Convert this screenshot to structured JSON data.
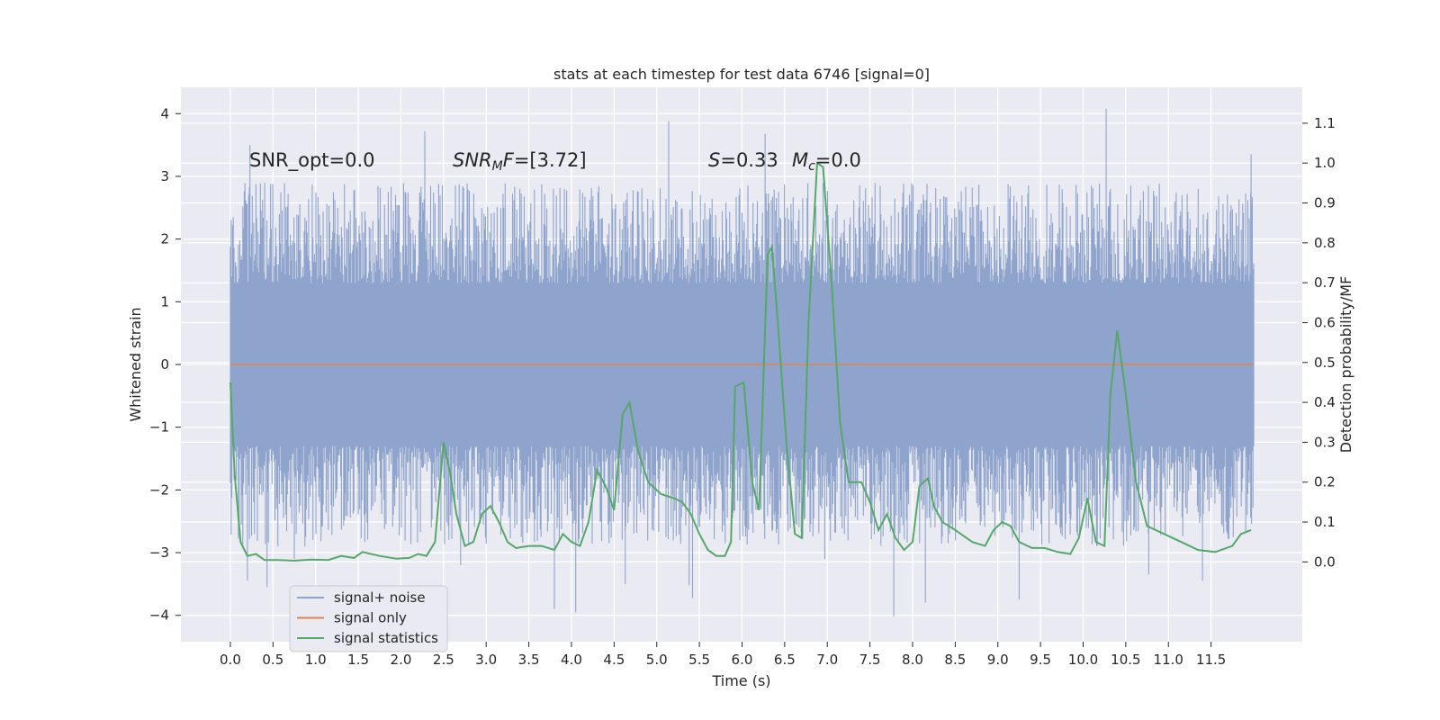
{
  "chart_data": {
    "type": "line",
    "title": "stats at each timestep for test data 6746 [signal=0]",
    "xlabel": "Time (s)",
    "ylabel_left": "Whitened strain",
    "ylabel_right": "Detection probability/MF",
    "xlim": [
      -0.58,
      12.57
    ],
    "ylim_left": [
      -4.42,
      4.42
    ],
    "ylim_right": [
      -0.2,
      1.19
    ],
    "x_ticks": [
      0.0,
      0.5,
      1.0,
      1.5,
      2.0,
      2.5,
      3.0,
      3.5,
      4.0,
      4.5,
      5.0,
      5.5,
      6.0,
      6.5,
      7.0,
      7.5,
      8.0,
      8.5,
      9.0,
      9.5,
      10.0,
      10.5,
      11.0,
      11.5
    ],
    "x_tick_labels": [
      "0.0",
      "0.5",
      "1.0",
      "1.5",
      "2.0",
      "2.5",
      "3.0",
      "3.5",
      "4.0",
      "4.5",
      "5.0",
      "5.5",
      "6.0",
      "6.5",
      "7.0",
      "7.5",
      "8.0",
      "8.5",
      "9.0",
      "9.5",
      "10.0",
      "10.5",
      "11.0",
      "11.5"
    ],
    "y_left_ticks": [
      -4,
      -3,
      -2,
      -1,
      0,
      1,
      2,
      3,
      4
    ],
    "y_left_tick_labels": [
      "−4",
      "−3",
      "−2",
      "−1",
      "0",
      "1",
      "2",
      "3",
      "4"
    ],
    "y_right_ticks": [
      0.0,
      0.1,
      0.2,
      0.3,
      0.4,
      0.5,
      0.6,
      0.7,
      0.8,
      0.9,
      1.0,
      1.1
    ],
    "y_right_tick_labels": [
      "0.0",
      "0.1",
      "0.2",
      "0.3",
      "0.4",
      "0.5",
      "0.6",
      "0.7",
      "0.8",
      "0.9",
      "1.0",
      "1.1"
    ],
    "grid": true,
    "legend_position": "lower-left",
    "series": [
      {
        "name": "signal+ noise",
        "axis": "left",
        "color": "#8fa4cc",
        "x_range": [
          0.0,
          12.0
        ],
        "typical_range": [
          -1.3,
          1.3
        ],
        "extremes": [
          {
            "x": 0.23,
            "y": 3.5
          },
          {
            "x": 0.2,
            "y": -3.45
          },
          {
            "x": 0.43,
            "y": -3.55
          },
          {
            "x": 0.75,
            "y": -3.1
          },
          {
            "x": 2.28,
            "y": 3.72
          },
          {
            "x": 2.7,
            "y": -3.2
          },
          {
            "x": 3.8,
            "y": -3.9
          },
          {
            "x": 4.05,
            "y": -3.95
          },
          {
            "x": 4.63,
            "y": -3.5
          },
          {
            "x": 5.14,
            "y": 3.88
          },
          {
            "x": 5.38,
            "y": -3.52
          },
          {
            "x": 5.42,
            "y": -3.72
          },
          {
            "x": 6.27,
            "y": 3.68
          },
          {
            "x": 6.97,
            "y": -3.1
          },
          {
            "x": 7.78,
            "y": -4.02
          },
          {
            "x": 8.15,
            "y": -3.8
          },
          {
            "x": 9.25,
            "y": -3.75
          },
          {
            "x": 10.27,
            "y": 4.08
          },
          {
            "x": 10.77,
            "y": -3.35
          },
          {
            "x": 11.4,
            "y": -3.45
          },
          {
            "x": 11.97,
            "y": 3.35
          }
        ]
      },
      {
        "name": "signal only",
        "axis": "left",
        "color": "#dd8452",
        "x": [
          0.0,
          12.0
        ],
        "y": [
          0.0,
          0.0
        ]
      },
      {
        "name": "signal statistics",
        "axis": "right",
        "color": "#55a868",
        "x": [
          0.0,
          0.05,
          0.12,
          0.2,
          0.3,
          0.4,
          0.55,
          0.75,
          0.95,
          1.15,
          1.3,
          1.45,
          1.55,
          1.75,
          1.95,
          2.1,
          2.2,
          2.3,
          2.4,
          2.5,
          2.58,
          2.65,
          2.75,
          2.85,
          2.95,
          3.05,
          3.15,
          3.25,
          3.35,
          3.5,
          3.65,
          3.8,
          3.9,
          4.0,
          4.1,
          4.2,
          4.3,
          4.4,
          4.5,
          4.6,
          4.68,
          4.78,
          4.9,
          5.05,
          5.2,
          5.3,
          5.4,
          5.5,
          5.6,
          5.7,
          5.8,
          5.87,
          5.92,
          6.02,
          6.12,
          6.2,
          6.3,
          6.35,
          6.42,
          6.52,
          6.62,
          6.7,
          6.78,
          6.88,
          6.95,
          7.05,
          7.15,
          7.25,
          7.4,
          7.5,
          7.6,
          7.7,
          7.8,
          7.9,
          8.0,
          8.08,
          8.18,
          8.25,
          8.35,
          8.5,
          8.7,
          8.85,
          8.95,
          9.05,
          9.15,
          9.25,
          9.4,
          9.55,
          9.7,
          9.85,
          9.95,
          10.05,
          10.15,
          10.25,
          10.32,
          10.4,
          10.5,
          10.62,
          10.75,
          10.85,
          10.95,
          11.15,
          11.35,
          11.55,
          11.75,
          11.85,
          11.97
        ],
        "y": [
          0.45,
          0.22,
          0.05,
          0.015,
          0.02,
          0.005,
          0.005,
          0.003,
          0.006,
          0.005,
          0.015,
          0.01,
          0.025,
          0.015,
          0.008,
          0.01,
          0.02,
          0.015,
          0.05,
          0.3,
          0.22,
          0.12,
          0.04,
          0.05,
          0.12,
          0.14,
          0.1,
          0.05,
          0.035,
          0.04,
          0.04,
          0.03,
          0.07,
          0.05,
          0.04,
          0.1,
          0.23,
          0.19,
          0.13,
          0.37,
          0.4,
          0.28,
          0.2,
          0.17,
          0.16,
          0.15,
          0.12,
          0.07,
          0.03,
          0.015,
          0.015,
          0.05,
          0.44,
          0.45,
          0.2,
          0.13,
          0.77,
          0.79,
          0.6,
          0.3,
          0.07,
          0.06,
          0.6,
          1.0,
          0.99,
          0.7,
          0.35,
          0.2,
          0.2,
          0.15,
          0.08,
          0.12,
          0.06,
          0.03,
          0.05,
          0.19,
          0.21,
          0.14,
          0.1,
          0.08,
          0.05,
          0.04,
          0.08,
          0.1,
          0.09,
          0.05,
          0.035,
          0.035,
          0.025,
          0.02,
          0.06,
          0.16,
          0.05,
          0.04,
          0.42,
          0.58,
          0.42,
          0.2,
          0.09,
          0.08,
          0.07,
          0.05,
          0.03,
          0.025,
          0.04,
          0.07,
          0.08
        ]
      }
    ],
    "annotations": [
      {
        "id": "snr_opt",
        "parts": [
          {
            "t": "SNR_opt=0.0"
          }
        ]
      },
      {
        "id": "snr_mf",
        "parts": [
          {
            "t": "SNR",
            "italic": true
          },
          {
            "t": "M",
            "italic": true,
            "sub": true
          },
          {
            "t": "F",
            "italic": true
          },
          {
            "t": "=[3.72]"
          }
        ]
      },
      {
        "id": "s_stat",
        "parts": [
          {
            "t": "S",
            "italic": true
          },
          {
            "t": "=0.33"
          }
        ]
      },
      {
        "id": "mc",
        "parts": [
          {
            "t": "M",
            "italic": true
          },
          {
            "t": "c",
            "italic": true,
            "sub": true
          },
          {
            "t": "=0.0"
          }
        ]
      }
    ]
  }
}
